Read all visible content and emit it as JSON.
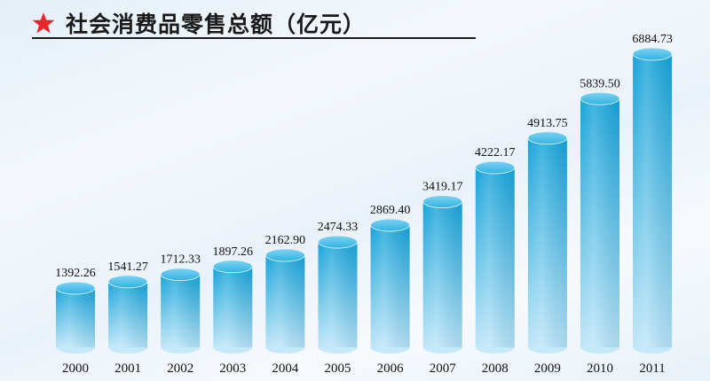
{
  "title": "社会消费品零售总额（亿元）",
  "star_color": "#e8262d",
  "bar_color_top": "#16a3d9",
  "bar_color_bottom": "#bfe6f8",
  "chart_data": {
    "type": "bar",
    "title": "社会消费品零售总额（亿元）",
    "categories": [
      "2000",
      "2001",
      "2002",
      "2003",
      "2004",
      "2005",
      "2006",
      "2007",
      "2008",
      "2009",
      "2010",
      "2011"
    ],
    "values": [
      1392.26,
      1541.27,
      1712.33,
      1897.26,
      2162.9,
      2474.33,
      2869.4,
      3419.17,
      4222.17,
      4913.75,
      5839.5,
      6884.73
    ],
    "value_labels": [
      "1392.26",
      "1541.27",
      "1712.33",
      "1897.26",
      "2162.90",
      "2474.33",
      "2869.40",
      "3419.17",
      "4222.17",
      "4913.75",
      "5839.50",
      "6884.73"
    ],
    "xlabel": "",
    "ylabel": "",
    "grid": false,
    "legend": "none"
  }
}
